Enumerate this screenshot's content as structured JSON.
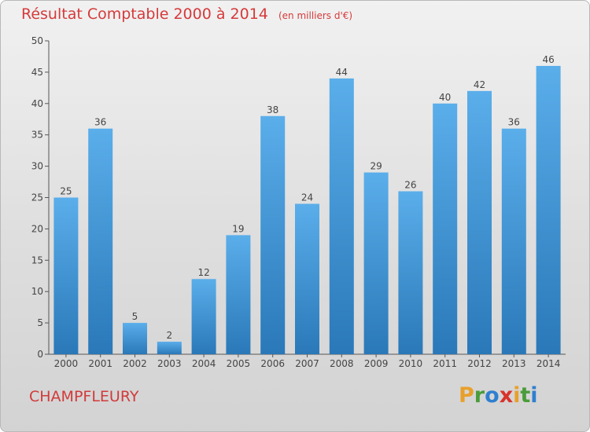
{
  "title": "Résultat Comptable 2000 à 2014",
  "subtitle": "(en milliers d'€)",
  "commune": "CHAMPFLEURY",
  "logo": {
    "letters": [
      "P",
      "r",
      "o",
      "x",
      "i",
      "t",
      "i"
    ],
    "colors": [
      "#e8a02c",
      "#4a9c3a",
      "#2f7fd0",
      "#d8322c",
      "#e8a02c",
      "#4a9c3a",
      "#2f7fd0"
    ]
  },
  "chart_data": {
    "type": "bar",
    "title": "Résultat Comptable 2000 à 2014",
    "subtitle": "(en milliers d'€)",
    "xlabel": "",
    "ylabel": "",
    "categories": [
      "2000",
      "2001",
      "2002",
      "2003",
      "2004",
      "2005",
      "2006",
      "2007",
      "2008",
      "2009",
      "2010",
      "2011",
      "2012",
      "2013",
      "2014"
    ],
    "values": [
      25,
      36,
      5,
      2,
      12,
      19,
      38,
      24,
      44,
      29,
      26,
      40,
      42,
      36,
      46
    ],
    "ylim": [
      0,
      50
    ],
    "yticks": [
      0,
      5,
      10,
      15,
      20,
      25,
      30,
      35,
      40,
      45,
      50
    ],
    "grid": false,
    "bar_color": "#3b94d8"
  }
}
